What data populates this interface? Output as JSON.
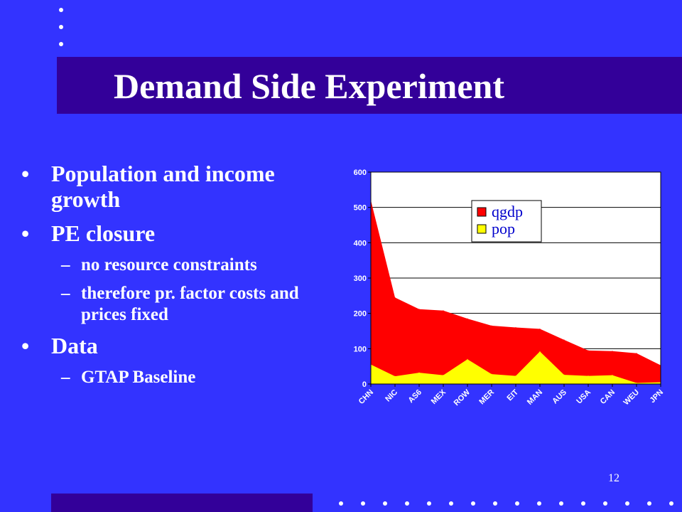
{
  "slide": {
    "title": "Demand Side Experiment",
    "number": "12"
  },
  "bullets": [
    {
      "level": 1,
      "mark": "•",
      "text": "Population and income growth"
    },
    {
      "level": 1,
      "mark": "•",
      "text": "PE closure"
    },
    {
      "level": 2,
      "mark": "–",
      "text": "no resource constraints"
    },
    {
      "level": 2,
      "mark": "–",
      "text": "therefore pr. factor costs and prices fixed"
    },
    {
      "level": 1,
      "mark": "•",
      "text": "Data"
    },
    {
      "level": 2,
      "mark": "–",
      "text": "GTAP Baseline"
    }
  ],
  "colors": {
    "background": "#3333ff",
    "title_band": "#330099",
    "qgdp": "#ff0000",
    "pop": "#ffff00"
  },
  "chart_data": {
    "type": "area",
    "categories": [
      "CHN",
      "NIC",
      "AS6",
      "MEX",
      "ROW",
      "MER",
      "EIT",
      "MAN",
      "AUS",
      "USA",
      "CAN",
      "WEU",
      "JPN"
    ],
    "series": [
      {
        "name": "qgdp",
        "values": [
          520,
          245,
          212,
          208,
          185,
          165,
          160,
          156,
          125,
          95,
          93,
          87,
          53
        ]
      },
      {
        "name": "pop",
        "values": [
          55,
          22,
          32,
          25,
          70,
          28,
          23,
          92,
          26,
          23,
          25,
          3,
          5
        ]
      }
    ],
    "yticks": [
      0,
      100,
      200,
      300,
      400,
      500,
      600
    ],
    "ylim": [
      0,
      600
    ],
    "grid": true,
    "legend": "top-center"
  }
}
